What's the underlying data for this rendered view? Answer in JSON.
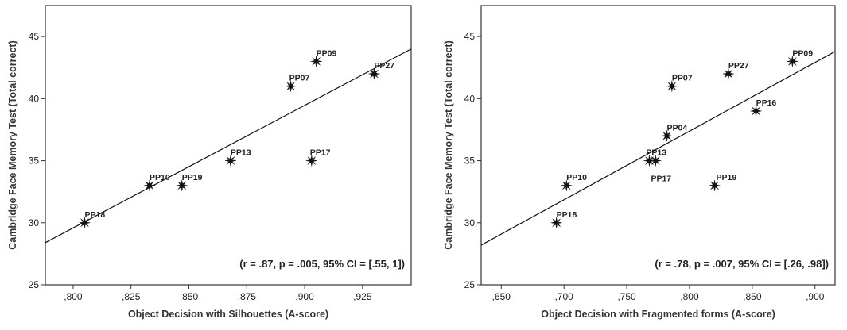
{
  "chart_data": [
    {
      "type": "scatter",
      "xlabel": "Object Decision with Silhouettes (A-score)",
      "ylabel": "Cambridge Face Memory Test (Total correct)",
      "xlim": [
        0.788,
        0.946
      ],
      "ylim": [
        25,
        47.5
      ],
      "xticks": [
        0.8,
        0.825,
        0.85,
        0.875,
        0.9,
        0.925
      ],
      "xtick_labels": [
        ",800",
        ",825",
        ",850",
        ",875",
        ",900",
        ",925"
      ],
      "yticks": [
        25,
        30,
        35,
        40,
        45
      ],
      "ytick_labels": [
        "25",
        "30",
        "35",
        "40",
        "45"
      ],
      "points": [
        {
          "label": "PP18",
          "x": 0.805,
          "y": 30
        },
        {
          "label": "PP10",
          "x": 0.833,
          "y": 33
        },
        {
          "label": "PP19",
          "x": 0.847,
          "y": 33
        },
        {
          "label": "PP13",
          "x": 0.868,
          "y": 35
        },
        {
          "label": "PP07",
          "x": 0.894,
          "y": 41
        },
        {
          "label": "PP09",
          "x": 0.905,
          "y": 43
        },
        {
          "label": "PP17",
          "x": 0.903,
          "y": 35
        },
        {
          "label": "PP27",
          "x": 0.93,
          "y": 42
        }
      ],
      "fit_line": {
        "x": [
          0.788,
          0.946
        ],
        "y": [
          28.4,
          44.0
        ]
      },
      "annotation": "(r = .87, p = .005, 95% CI = [.55, 1])",
      "grid": false
    },
    {
      "type": "scatter",
      "xlabel": "Object Decision with Fragmented forms (A-score)",
      "ylabel": "Cambridge Face Memory Test (Total correct)",
      "xlim": [
        0.634,
        0.916
      ],
      "ylim": [
        25,
        47.5
      ],
      "xticks": [
        0.65,
        0.7,
        0.75,
        0.8,
        0.85,
        0.9
      ],
      "xtick_labels": [
        ",650",
        ",700",
        ",750",
        ",800",
        ",850",
        ",900"
      ],
      "yticks": [
        25,
        30,
        35,
        40,
        45
      ],
      "ytick_labels": [
        "25",
        "30",
        "35",
        "40",
        "45"
      ],
      "points": [
        {
          "label": "PP18",
          "x": 0.694,
          "y": 30
        },
        {
          "label": "PP10",
          "x": 0.702,
          "y": 33
        },
        {
          "label": "PP17",
          "x": 0.768,
          "y": 35
        },
        {
          "label": "PP13",
          "x": 0.773,
          "y": 35
        },
        {
          "label": "PP04",
          "x": 0.782,
          "y": 37
        },
        {
          "label": "PP07",
          "x": 0.786,
          "y": 41
        },
        {
          "label": "PP19",
          "x": 0.82,
          "y": 33
        },
        {
          "label": "PP27",
          "x": 0.831,
          "y": 42
        },
        {
          "label": "PP16",
          "x": 0.853,
          "y": 39
        },
        {
          "label": "PP09",
          "x": 0.882,
          "y": 43
        }
      ],
      "fit_line": {
        "x": [
          0.634,
          0.916
        ],
        "y": [
          28.2,
          43.8
        ]
      },
      "annotation": "(r = .78, p = .007, 95% CI = [.26, .98])",
      "grid": false
    }
  ]
}
